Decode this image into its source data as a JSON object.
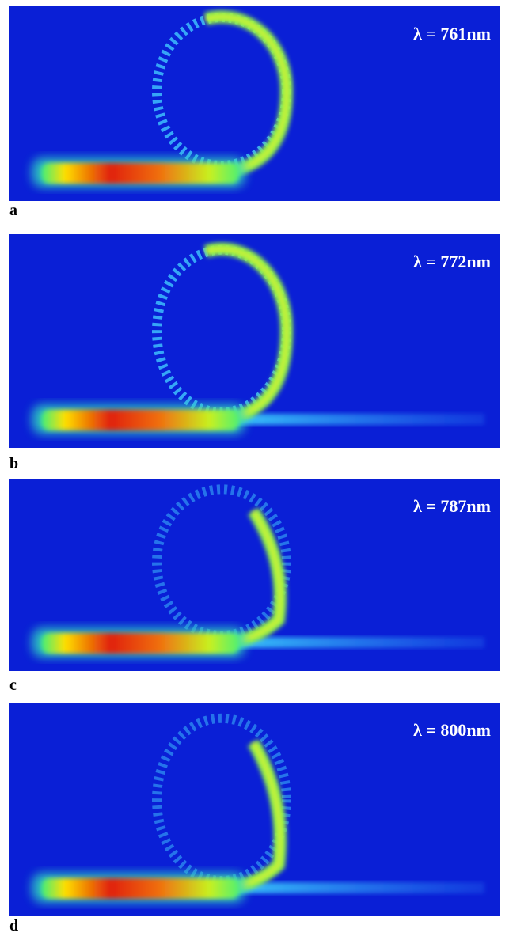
{
  "panels": [
    {
      "label": "a",
      "wavelength": "λ = 761nm"
    },
    {
      "label": "b",
      "wavelength": "λ = 772nm"
    },
    {
      "label": "c",
      "wavelength": "λ = 787nm"
    },
    {
      "label": "d",
      "wavelength": "λ = 800nm"
    }
  ]
}
